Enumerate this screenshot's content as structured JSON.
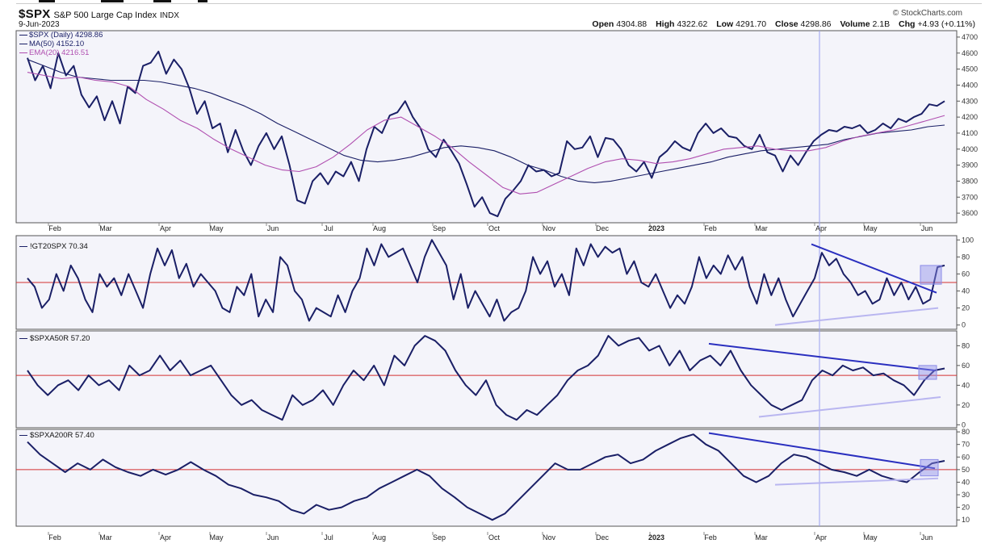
{
  "header": {
    "symbol": "$SPX",
    "name": "S&P 500 Large Cap Index",
    "exchange": "INDX",
    "date": "9-Jun-2023",
    "brand": "© StockCharts.com",
    "ohlc": [
      {
        "label": "Open",
        "value": "4304.88"
      },
      {
        "label": "High",
        "value": "4322.62"
      },
      {
        "label": "Low",
        "value": "4291.70"
      },
      {
        "label": "Close",
        "value": "4298.86"
      },
      {
        "label": "Volume",
        "value": "2.1B"
      },
      {
        "label": "Chg",
        "value": "+4.93 (+0.11%)"
      }
    ]
  },
  "legend": {
    "price": "$SPX (Daily) 4298.86",
    "ma50": "MA(50) 4152.10",
    "ema20": "EMA(20) 4216.51"
  },
  "panel_labels": {
    "p2": "!GT20SPX 70.34",
    "p3": "$SPXA50R 57.20",
    "p4": "$SPXA200R 57.40"
  },
  "colors": {
    "price": "#1a1f66",
    "ma50": "#1a1f66",
    "ema20": "#b04fb0",
    "reference_line": "#d33030",
    "trendline": "#2a2fbf",
    "support_line": "#b9b6f0",
    "highlight_box": "#8c8ce8",
    "marker_line": "#9aa0f0",
    "panel_bg": "#f4f4fa"
  },
  "x_axis": {
    "months": [
      "Feb",
      "Mar",
      "Apr",
      "May",
      "Jun",
      "Jul",
      "Aug",
      "Sep",
      "Oct",
      "Nov",
      "Dec",
      "2023",
      "Feb",
      "Mar",
      "Apr",
      "May",
      "Jun"
    ]
  },
  "chart_data": [
    {
      "type": "line",
      "title": "$SPX S&P 500 Large Cap Index",
      "y_ticks": [
        3600,
        3700,
        3800,
        3900,
        4000,
        4100,
        4200,
        4300,
        4400,
        4500,
        4600,
        4700
      ],
      "ylim": [
        3540,
        4740
      ],
      "series": [
        {
          "name": "$SPX (Daily)",
          "values": [
            4570,
            4430,
            4520,
            4380,
            4600,
            4460,
            4520,
            4340,
            4260,
            4330,
            4180,
            4300,
            4160,
            4390,
            4350,
            4520,
            4540,
            4610,
            4470,
            4560,
            4500,
            4380,
            4220,
            4300,
            4130,
            4160,
            3980,
            4120,
            3990,
            3900,
            4020,
            4100,
            4000,
            4080,
            3900,
            3680,
            3660,
            3800,
            3850,
            3780,
            3860,
            3830,
            3920,
            3800,
            4000,
            4140,
            4100,
            4210,
            4230,
            4300,
            4200,
            4130,
            4000,
            3950,
            4060,
            3990,
            3910,
            3780,
            3640,
            3700,
            3600,
            3580,
            3690,
            3740,
            3800,
            3900,
            3860,
            3870,
            3830,
            3850,
            4050,
            4000,
            4010,
            4080,
            3950,
            4070,
            4060,
            4000,
            3900,
            3860,
            3920,
            3820,
            3950,
            3990,
            4050,
            4010,
            3990,
            4100,
            4160,
            4100,
            4130,
            4080,
            4070,
            4020,
            4000,
            4090,
            3980,
            3960,
            3860,
            3960,
            3900,
            3980,
            4050,
            4090,
            4120,
            4110,
            4140,
            4130,
            4150,
            4100,
            4120,
            4160,
            4130,
            4190,
            4170,
            4200,
            4220,
            4280,
            4270,
            4300
          ]
        },
        {
          "name": "MA(50)",
          "values": [
            4560,
            4520,
            4480,
            4450,
            4440,
            4430,
            4430,
            4430,
            4420,
            4400,
            4380,
            4350,
            4310,
            4270,
            4220,
            4160,
            4110,
            4060,
            4010,
            3960,
            3930,
            3920,
            3930,
            3950,
            3980,
            4010,
            4020,
            4010,
            3990,
            3950,
            3900,
            3870,
            3830,
            3800,
            3790,
            3800,
            3820,
            3840,
            3860,
            3880,
            3900,
            3920,
            3950,
            3970,
            3990,
            4000,
            4010,
            4020,
            4030,
            4060,
            4080,
            4100,
            4110,
            4120,
            4140,
            4150
          ]
        },
        {
          "name": "EMA(20)",
          "values": [
            4480,
            4460,
            4440,
            4450,
            4430,
            4420,
            4390,
            4310,
            4250,
            4180,
            4130,
            4060,
            4000,
            3950,
            3900,
            3870,
            3860,
            3890,
            3950,
            4030,
            4120,
            4180,
            4200,
            4140,
            4080,
            4010,
            3920,
            3840,
            3760,
            3720,
            3730,
            3780,
            3830,
            3880,
            3920,
            3940,
            3930,
            3910,
            3920,
            3940,
            3970,
            4000,
            4010,
            4020,
            4000,
            3990,
            3990,
            4010,
            4050,
            4080,
            4100,
            4120,
            4150,
            4180,
            4210
          ]
        }
      ]
    },
    {
      "type": "line",
      "title": "!GT20SPX",
      "y_ticks": [
        0,
        20,
        40,
        60,
        80,
        100
      ],
      "ylim": [
        -5,
        105
      ],
      "reference": 50,
      "series": [
        {
          "name": "!GT20SPX",
          "values": [
            55,
            45,
            20,
            30,
            60,
            40,
            70,
            55,
            30,
            15,
            60,
            45,
            55,
            35,
            60,
            40,
            20,
            60,
            90,
            70,
            88,
            55,
            72,
            45,
            60,
            50,
            40,
            20,
            15,
            45,
            35,
            60,
            10,
            30,
            15,
            80,
            70,
            40,
            30,
            5,
            20,
            15,
            10,
            35,
            15,
            40,
            55,
            90,
            70,
            95,
            80,
            85,
            90,
            70,
            50,
            80,
            100,
            85,
            70,
            30,
            60,
            20,
            40,
            25,
            10,
            30,
            5,
            15,
            20,
            40,
            80,
            60,
            75,
            45,
            60,
            35,
            90,
            70,
            95,
            80,
            92,
            85,
            90,
            60,
            75,
            50,
            45,
            60,
            40,
            20,
            35,
            25,
            45,
            80,
            55,
            70,
            60,
            82,
            65,
            80,
            45,
            25,
            60,
            35,
            55,
            30,
            10,
            25,
            40,
            55,
            85,
            70,
            78,
            60,
            50,
            35,
            40,
            25,
            30,
            55,
            35,
            50,
            30,
            45,
            25,
            30,
            68,
            70
          ]
        }
      ]
    },
    {
      "type": "line",
      "title": "$SPXA50R",
      "y_ticks": [
        0,
        20,
        40,
        60,
        80
      ],
      "ylim": [
        -3,
        95
      ],
      "reference": 50,
      "series": [
        {
          "name": "$SPXA50R",
          "values": [
            55,
            40,
            30,
            40,
            45,
            35,
            50,
            40,
            45,
            35,
            60,
            50,
            55,
            70,
            55,
            65,
            50,
            55,
            60,
            45,
            30,
            20,
            25,
            15,
            10,
            5,
            30,
            20,
            25,
            35,
            20,
            40,
            55,
            45,
            60,
            40,
            70,
            60,
            80,
            90,
            85,
            75,
            55,
            40,
            30,
            45,
            20,
            10,
            5,
            15,
            10,
            20,
            30,
            45,
            55,
            60,
            70,
            90,
            80,
            85,
            88,
            75,
            80,
            60,
            75,
            55,
            65,
            70,
            60,
            75,
            55,
            40,
            30,
            20,
            15,
            20,
            25,
            45,
            55,
            50,
            60,
            55,
            58,
            50,
            52,
            45,
            40,
            30,
            45,
            55,
            57
          ]
        }
      ]
    },
    {
      "type": "line",
      "title": "$SPXA200R",
      "y_ticks": [
        10,
        20,
        30,
        40,
        50,
        60,
        70,
        80
      ],
      "ylim": [
        5,
        82
      ],
      "reference": 50,
      "series": [
        {
          "name": "$SPXA200R",
          "values": [
            72,
            62,
            55,
            48,
            55,
            50,
            58,
            52,
            48,
            45,
            50,
            46,
            50,
            56,
            50,
            45,
            38,
            35,
            30,
            28,
            25,
            18,
            15,
            22,
            18,
            20,
            25,
            28,
            35,
            40,
            45,
            50,
            45,
            35,
            28,
            20,
            15,
            10,
            15,
            25,
            35,
            45,
            55,
            50,
            50,
            55,
            60,
            62,
            55,
            58,
            65,
            70,
            75,
            78,
            70,
            65,
            55,
            45,
            40,
            45,
            55,
            62,
            60,
            55,
            50,
            48,
            45,
            50,
            45,
            42,
            40,
            48,
            55,
            57
          ]
        }
      ]
    }
  ]
}
